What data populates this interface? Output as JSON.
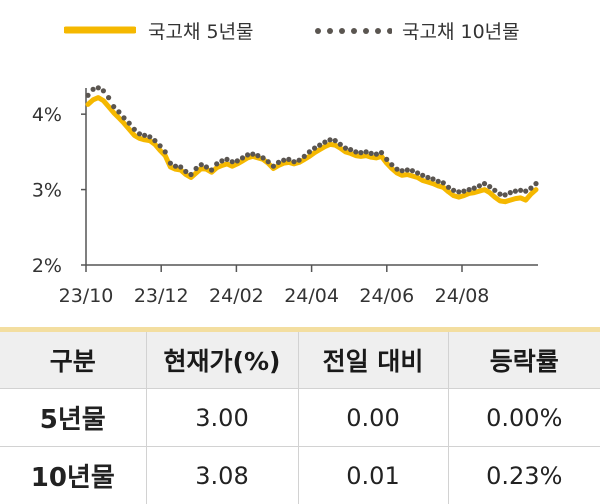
{
  "chart_data": {
    "type": "line",
    "xlabel": "",
    "ylabel": "",
    "ylim": [
      2,
      4.4
    ],
    "yticks": [
      2,
      3,
      4
    ],
    "y_tick_labels": [
      "2%",
      "3%",
      "4%"
    ],
    "x_tick_labels": [
      "23/10",
      "23/12",
      "24/02",
      "24/04",
      "24/06",
      "24/08"
    ],
    "grid": false,
    "legend_position": "top",
    "series": [
      {
        "name": "국고채 5년물",
        "style": "solid",
        "color": "#f5b800",
        "values": [
          4.13,
          4.19,
          4.22,
          4.18,
          4.1,
          4.02,
          3.95,
          3.88,
          3.8,
          3.72,
          3.68,
          3.66,
          3.65,
          3.6,
          3.52,
          3.45,
          3.3,
          3.27,
          3.26,
          3.2,
          3.16,
          3.22,
          3.28,
          3.27,
          3.23,
          3.29,
          3.32,
          3.34,
          3.31,
          3.34,
          3.38,
          3.42,
          3.44,
          3.42,
          3.4,
          3.35,
          3.28,
          3.32,
          3.35,
          3.36,
          3.34,
          3.36,
          3.4,
          3.44,
          3.49,
          3.53,
          3.57,
          3.6,
          3.59,
          3.55,
          3.5,
          3.48,
          3.45,
          3.44,
          3.45,
          3.43,
          3.42,
          3.44,
          3.35,
          3.28,
          3.22,
          3.19,
          3.2,
          3.18,
          3.16,
          3.12,
          3.1,
          3.08,
          3.05,
          3.03,
          2.97,
          2.92,
          2.9,
          2.92,
          2.95,
          2.96,
          2.98,
          3.0,
          2.96,
          2.9,
          2.85,
          2.84,
          2.86,
          2.88,
          2.89,
          2.86,
          2.94,
          3.0
        ]
      },
      {
        "name": "국고채 10년물",
        "style": "dotted",
        "color": "#5a5550",
        "values": [
          4.25,
          4.33,
          4.35,
          4.31,
          4.22,
          4.1,
          4.03,
          3.95,
          3.88,
          3.8,
          3.74,
          3.72,
          3.7,
          3.65,
          3.58,
          3.5,
          3.35,
          3.31,
          3.3,
          3.24,
          3.2,
          3.28,
          3.33,
          3.3,
          3.26,
          3.34,
          3.38,
          3.4,
          3.37,
          3.38,
          3.42,
          3.46,
          3.47,
          3.45,
          3.42,
          3.37,
          3.31,
          3.36,
          3.39,
          3.4,
          3.37,
          3.39,
          3.44,
          3.5,
          3.55,
          3.59,
          3.63,
          3.66,
          3.65,
          3.6,
          3.55,
          3.53,
          3.5,
          3.49,
          3.5,
          3.48,
          3.47,
          3.49,
          3.4,
          3.33,
          3.27,
          3.25,
          3.26,
          3.25,
          3.22,
          3.19,
          3.16,
          3.14,
          3.11,
          3.09,
          3.03,
          2.99,
          2.97,
          2.98,
          3.0,
          3.02,
          3.05,
          3.08,
          3.04,
          2.99,
          2.94,
          2.93,
          2.96,
          2.98,
          2.99,
          2.98,
          3.02,
          3.08
        ]
      }
    ]
  },
  "legend": {
    "series1_label": "국고채 5년물",
    "series2_label": "국고채 10년물"
  },
  "table": {
    "headers": [
      "구분",
      "현재가(%)",
      "전일 대비",
      "등락률"
    ],
    "rows": [
      [
        "5년물",
        "3.00",
        "0.00",
        "0.00%"
      ],
      [
        "10년물",
        "3.08",
        "0.01",
        "0.23%"
      ]
    ]
  },
  "colors": {
    "five_year": "#f5b800",
    "ten_year": "#5a5550",
    "header_rule": "#f3dea0",
    "header_bg": "#efefef"
  }
}
